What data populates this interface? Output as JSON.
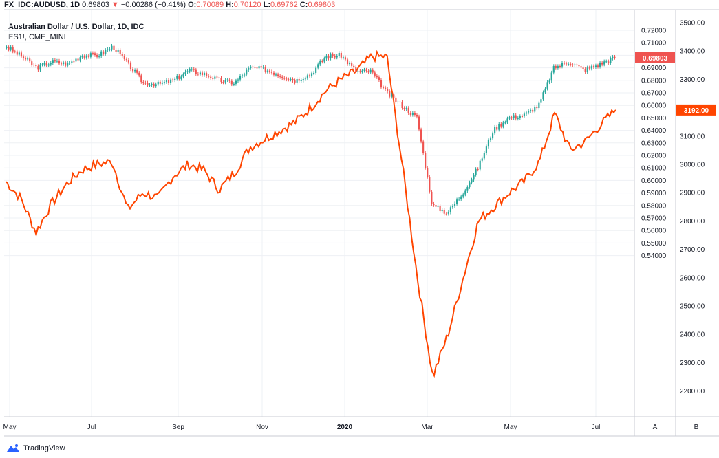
{
  "header": {
    "symbol": "FX_IDC:AUDUSD, 1D",
    "last": "0.69803",
    "arrow": "▼",
    "change": "−0.00286 (−0.41%)",
    "o_label": "O:",
    "o_value": "0.70089",
    "h_label": "H:",
    "h_value": "0.70120",
    "l_label": "L:",
    "l_value": "0.69762",
    "c_label": "C:",
    "c_value": "0.69803"
  },
  "legend": {
    "line1": "Australian Dollar / U.S. Dollar, 1D, IDC",
    "line2": "ES1!, CME_MINI"
  },
  "footer": {
    "brand": "TradingView",
    "brand_icon": "tradingview-logo-icon"
  },
  "colors": {
    "up": "#26a69a",
    "down": "#ef5350",
    "es_line": "#ff4500",
    "grid": "#eef0f4",
    "axis": "#c8cbd3"
  },
  "chart_data": {
    "type": "line",
    "x_ticks": [
      "May",
      "Jul",
      "Sep",
      "Nov",
      "2020",
      "Mar",
      "May",
      "Jul"
    ],
    "scale_a_labels": [
      "0.72000",
      "0.71000",
      "0.70000",
      "0.69000",
      "0.68000",
      "0.67000",
      "0.66000",
      "0.65000",
      "0.64000",
      "0.63000",
      "0.62000",
      "0.61000",
      "0.60000",
      "0.59000",
      "0.58000",
      "0.57000",
      "0.56000",
      "0.55000",
      "0.54000"
    ],
    "scale_b_labels": [
      "3500.00",
      "3400.00",
      "3300.00",
      "3200.00",
      "3100.00",
      "3000.00",
      "2900.00",
      "2800.00",
      "2700.00",
      "2600.00",
      "2500.00",
      "2400.00",
      "2300.00",
      "2200.00"
    ],
    "scale_a_button": "A",
    "scale_b_button": "B",
    "audusd_last_badge": "0.69803",
    "es_last_badge": "3192.00",
    "series": [
      {
        "name": "Australian Dollar / U.S. Dollar, 1D, IDC",
        "style": "candles",
        "x": [
          "2019-05",
          "2019-05",
          "2019-06",
          "2019-06",
          "2019-06",
          "2019-07",
          "2019-07",
          "2019-07",
          "2019-08",
          "2019-08",
          "2019-08",
          "2019-09",
          "2019-09",
          "2019-09",
          "2019-10",
          "2019-10",
          "2019-11",
          "2019-11",
          "2019-11",
          "2019-12",
          "2019-12",
          "2020-01",
          "2020-01",
          "2020-01",
          "2020-02",
          "2020-02",
          "2020-03",
          "2020-03",
          "2020-03",
          "2020-03",
          "2020-04",
          "2020-04",
          "2020-04",
          "2020-05",
          "2020-05",
          "2020-05",
          "2020-06",
          "2020-06",
          "2020-06",
          "2020-07",
          "2020-07"
        ],
        "values": [
          0.707,
          0.699,
          0.69,
          0.695,
          0.693,
          0.7,
          0.7,
          0.707,
          0.693,
          0.678,
          0.677,
          0.68,
          0.688,
          0.685,
          0.68,
          0.678,
          0.69,
          0.689,
          0.684,
          0.68,
          0.685,
          0.699,
          0.7,
          0.687,
          0.687,
          0.67,
          0.66,
          0.65,
          0.58,
          0.574,
          0.59,
          0.61,
          0.64,
          0.65,
          0.652,
          0.66,
          0.69,
          0.695,
          0.688,
          0.693,
          0.698
        ]
      },
      {
        "name": "ES1!, CME_MINI",
        "style": "line",
        "x": [
          "2019-05",
          "2019-05",
          "2019-06",
          "2019-06",
          "2019-06",
          "2019-07",
          "2019-07",
          "2019-07",
          "2019-08",
          "2019-08",
          "2019-08",
          "2019-09",
          "2019-09",
          "2019-09",
          "2019-10",
          "2019-10",
          "2019-11",
          "2019-11",
          "2019-11",
          "2019-12",
          "2019-12",
          "2020-01",
          "2020-01",
          "2020-01",
          "2020-02",
          "2020-02",
          "2020-03",
          "2020-03",
          "2020-03",
          "2020-03",
          "2020-04",
          "2020-04",
          "2020-04",
          "2020-05",
          "2020-05",
          "2020-05",
          "2020-06",
          "2020-06",
          "2020-06",
          "2020-07",
          "2020-07"
        ],
        "values": [
          2940,
          2880,
          2760,
          2860,
          2930,
          2980,
          3000,
          3010,
          2840,
          2900,
          2880,
          2960,
          3000,
          2980,
          2910,
          2970,
          3060,
          3090,
          3120,
          3150,
          3200,
          3260,
          3300,
          3330,
          3380,
          3380,
          3000,
          2600,
          2250,
          2400,
          2600,
          2800,
          2850,
          2900,
          2940,
          3010,
          3180,
          3050,
          3080,
          3140,
          3192
        ]
      }
    ]
  }
}
